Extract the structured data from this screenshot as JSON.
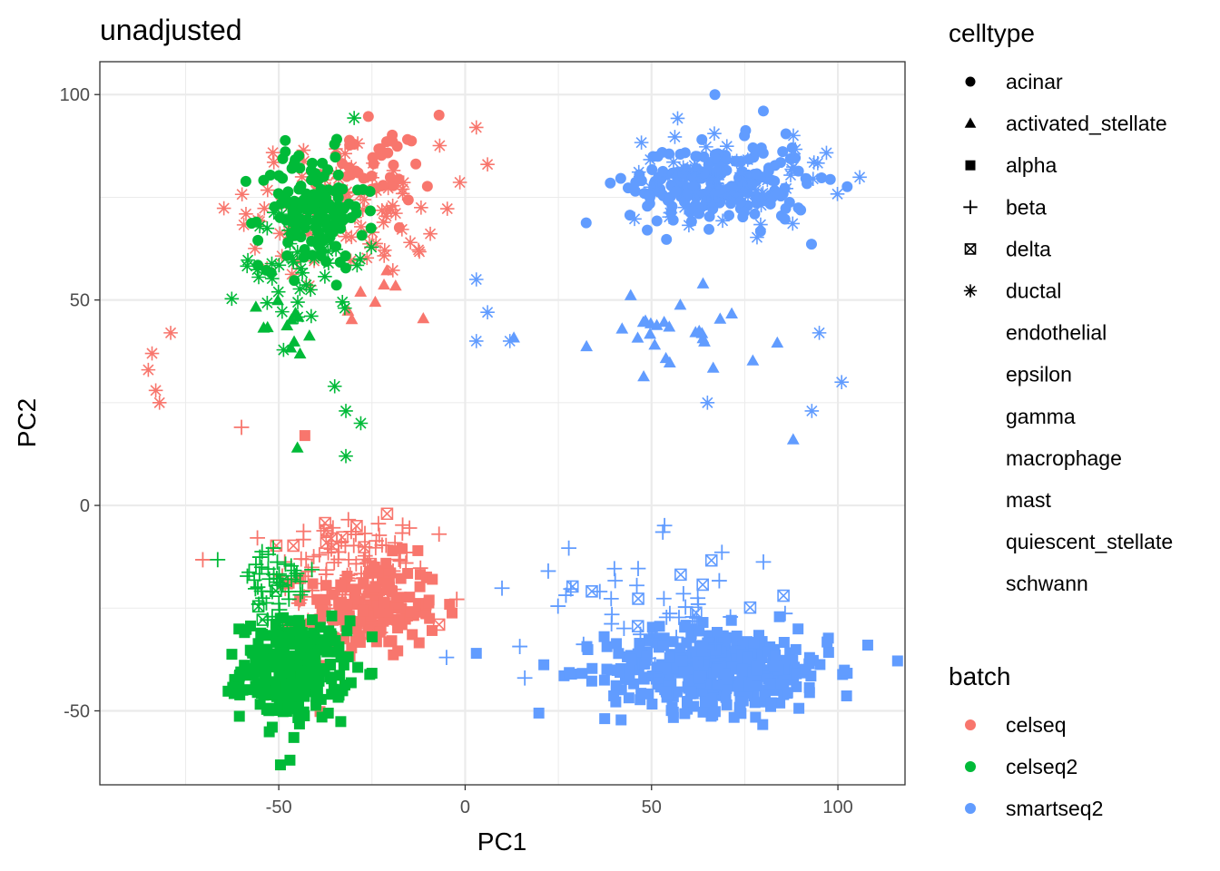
{
  "chart_data": {
    "type": "scatter",
    "title": "unadjusted",
    "xlabel": "PC1",
    "ylabel": "PC2",
    "xlim": [
      -98,
      118
    ],
    "ylim": [
      -68,
      108
    ],
    "x_ticks": [
      -50,
      0,
      50,
      100
    ],
    "y_ticks": [
      -50,
      0,
      50,
      100
    ],
    "x_tick_labels": [
      "-50",
      "0",
      "50",
      "100"
    ],
    "y_tick_labels": [
      "-50",
      "0",
      "50",
      "100"
    ],
    "grid": true,
    "theme": "bw",
    "legend_position": "right",
    "shape_legend": {
      "title": "celltype",
      "entries": [
        {
          "label": "acinar",
          "shape": "circle"
        },
        {
          "label": "activated_stellate",
          "shape": "triangle"
        },
        {
          "label": "alpha",
          "shape": "square"
        },
        {
          "label": "beta",
          "shape": "plus"
        },
        {
          "label": "delta",
          "shape": "square-x"
        },
        {
          "label": "ductal",
          "shape": "asterisk"
        },
        {
          "label": "endothelial",
          "shape": "none"
        },
        {
          "label": "epsilon",
          "shape": "none"
        },
        {
          "label": "gamma",
          "shape": "none"
        },
        {
          "label": "macrophage",
          "shape": "none"
        },
        {
          "label": "mast",
          "shape": "none"
        },
        {
          "label": "quiescent_stellate",
          "shape": "none"
        },
        {
          "label": "schwann",
          "shape": "none"
        }
      ]
    },
    "color_legend": {
      "title": "batch",
      "entries": [
        {
          "label": "celseq",
          "color": "#F8766D"
        },
        {
          "label": "celseq2",
          "color": "#00BA38"
        },
        {
          "label": "smartseq2",
          "color": "#619CFF"
        }
      ]
    },
    "series": [
      {
        "name": "celseq",
        "color": "#F8766D",
        "clusters": [
          {
            "celltype": "beta",
            "shape": "plus",
            "cx": -30,
            "cy": -17,
            "sx": 10,
            "sy": 8,
            "n": 110
          },
          {
            "celltype": "alpha",
            "shape": "square",
            "cx": -25,
            "cy": -25,
            "sx": 9,
            "sy": 6,
            "n": 150
          },
          {
            "celltype": "delta",
            "shape": "square-x",
            "cx": -35,
            "cy": -8,
            "sx": 9,
            "sy": 6,
            "n": 12
          },
          {
            "celltype": "ductal",
            "shape": "asterisk",
            "cx": -32,
            "cy": 72,
            "sx": 13,
            "sy": 8,
            "n": 95
          },
          {
            "celltype": "acinar",
            "shape": "circle",
            "cx": -25,
            "cy": 82,
            "sx": 8,
            "sy": 5,
            "n": 40
          },
          {
            "celltype": "activated_stellate",
            "shape": "triangle",
            "cx": -28,
            "cy": 50,
            "sx": 6,
            "sy": 4,
            "n": 8
          }
        ],
        "points": [
          {
            "x": -85,
            "y": 33,
            "shape": "asterisk"
          },
          {
            "x": -84,
            "y": 37,
            "shape": "asterisk"
          },
          {
            "x": -83,
            "y": 28,
            "shape": "asterisk"
          },
          {
            "x": -82,
            "y": 25,
            "shape": "asterisk"
          },
          {
            "x": -79,
            "y": 42,
            "shape": "asterisk"
          },
          {
            "x": -7,
            "y": 95,
            "shape": "circle"
          },
          {
            "x": 3,
            "y": 92,
            "shape": "asterisk"
          },
          {
            "x": 6,
            "y": 83,
            "shape": "asterisk"
          },
          {
            "x": -60,
            "y": 19,
            "shape": "plus"
          },
          {
            "x": -43,
            "y": 17,
            "shape": "square"
          },
          {
            "x": -7,
            "y": -7,
            "shape": "plus"
          },
          {
            "x": -7,
            "y": -29,
            "shape": "square-x"
          }
        ]
      },
      {
        "name": "celseq2",
        "color": "#00BA38",
        "clusters": [
          {
            "celltype": "alpha",
            "shape": "square",
            "cx": -46,
            "cy": -40,
            "sx": 7,
            "sy": 6,
            "n": 260
          },
          {
            "celltype": "beta",
            "shape": "plus",
            "cx": -52,
            "cy": -20,
            "sx": 6,
            "sy": 6,
            "n": 45
          },
          {
            "celltype": "delta",
            "shape": "square-x",
            "cx": -52,
            "cy": -25,
            "sx": 4,
            "sy": 3,
            "n": 5
          },
          {
            "celltype": "acinar",
            "shape": "circle",
            "cx": -41,
            "cy": 72,
            "sx": 7,
            "sy": 7,
            "n": 150
          },
          {
            "celltype": "ductal",
            "shape": "asterisk",
            "cx": -43,
            "cy": 60,
            "sx": 8,
            "sy": 10,
            "n": 45
          },
          {
            "celltype": "activated_stellate",
            "shape": "triangle",
            "cx": -47,
            "cy": 43,
            "sx": 4,
            "sy": 4,
            "n": 12
          }
        ],
        "points": [
          {
            "x": -35,
            "y": 29,
            "shape": "asterisk"
          },
          {
            "x": -32,
            "y": 23,
            "shape": "asterisk"
          },
          {
            "x": -28,
            "y": 20,
            "shape": "asterisk"
          },
          {
            "x": -32,
            "y": 12,
            "shape": "asterisk"
          },
          {
            "x": -45,
            "y": 14,
            "shape": "triangle"
          },
          {
            "x": -47,
            "y": -62,
            "shape": "square"
          }
        ]
      },
      {
        "name": "smartseq2",
        "color": "#619CFF",
        "clusters": [
          {
            "celltype": "alpha",
            "shape": "square",
            "cx": 68,
            "cy": -40,
            "sx": 15,
            "sy": 5,
            "n": 420
          },
          {
            "celltype": "beta",
            "shape": "plus",
            "cx": 50,
            "cy": -25,
            "sx": 18,
            "sy": 8,
            "n": 45
          },
          {
            "celltype": "delta",
            "shape": "square-x",
            "cx": 55,
            "cy": -20,
            "sx": 20,
            "sy": 4,
            "n": 10
          },
          {
            "celltype": "acinar",
            "shape": "circle",
            "cx": 68,
            "cy": 78,
            "sx": 12,
            "sy": 5,
            "n": 230
          },
          {
            "celltype": "ductal",
            "shape": "asterisk",
            "cx": 70,
            "cy": 80,
            "sx": 14,
            "sy": 6,
            "n": 55
          },
          {
            "celltype": "activated_stellate",
            "shape": "triangle",
            "cx": 55,
            "cy": 42,
            "sx": 14,
            "sy": 5,
            "n": 28
          }
        ],
        "points": [
          {
            "x": 67,
            "y": 100,
            "shape": "circle"
          },
          {
            "x": 80,
            "y": 96,
            "shape": "circle"
          },
          {
            "x": 3,
            "y": 40,
            "shape": "asterisk"
          },
          {
            "x": 3,
            "y": 55,
            "shape": "asterisk"
          },
          {
            "x": 6,
            "y": 47,
            "shape": "asterisk"
          },
          {
            "x": 12,
            "y": 40,
            "shape": "asterisk"
          },
          {
            "x": 65,
            "y": 25,
            "shape": "asterisk"
          },
          {
            "x": 93,
            "y": 23,
            "shape": "asterisk"
          },
          {
            "x": 95,
            "y": 42,
            "shape": "asterisk"
          },
          {
            "x": 101,
            "y": 30,
            "shape": "asterisk"
          },
          {
            "x": 88,
            "y": 16,
            "shape": "triangle"
          },
          {
            "x": -5,
            "y": -37,
            "shape": "plus"
          },
          {
            "x": 3,
            "y": -36,
            "shape": "square"
          },
          {
            "x": 108,
            "y": -34,
            "shape": "square"
          },
          {
            "x": 16,
            "y": -42,
            "shape": "plus"
          }
        ]
      }
    ]
  }
}
